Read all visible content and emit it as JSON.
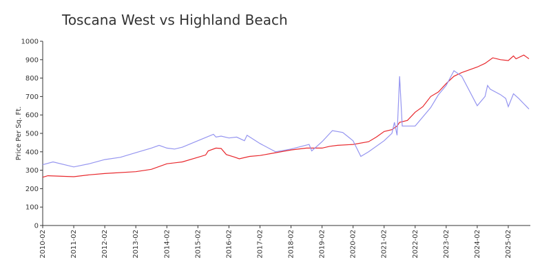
{
  "chart_data": {
    "type": "line",
    "title": "Toscana West vs Highland Beach",
    "y_label": "Price Per Sq. Ft.",
    "xlim": [
      "2010-02",
      "2025-10"
    ],
    "xticks": [
      "2010-02",
      "2011-02",
      "2012-02",
      "2013-02",
      "2014-02",
      "2015-02",
      "2016-02",
      "2017-02",
      "2018-02",
      "2019-02",
      "2020-02",
      "2021-02",
      "2022-02",
      "2023-02",
      "2024-02",
      "2025-02"
    ],
    "ylim": [
      0,
      1000
    ],
    "yticks": [
      0,
      100,
      200,
      300,
      400,
      500,
      600,
      700,
      800,
      900,
      1000
    ],
    "series": [
      {
        "color": "#e8262b",
        "x": [
          "2010-02",
          "2010-04",
          "2011-02",
          "2011-08",
          "2012-02",
          "2013-02",
          "2013-08",
          "2014-02",
          "2014-08",
          "2015-02",
          "2015-05",
          "2015-06",
          "2015-09",
          "2015-11",
          "2016-01",
          "2016-04",
          "2016-06",
          "2016-10",
          "2017-02",
          "2017-06",
          "2018-02",
          "2018-08",
          "2019-02",
          "2019-05",
          "2019-08",
          "2020-02",
          "2020-08",
          "2020-11",
          "2021-02",
          "2021-05",
          "2021-07",
          "2021-08",
          "2021-11",
          "2022-02",
          "2022-05",
          "2022-08",
          "2022-11",
          "2023-02",
          "2023-05",
          "2023-08",
          "2024-02",
          "2024-05",
          "2024-08",
          "2024-11",
          "2025-02",
          "2025-04",
          "2025-05",
          "2025-08",
          "2025-10"
        ],
        "values": [
          262,
          270,
          265,
          275,
          282,
          292,
          305,
          335,
          345,
          370,
          383,
          405,
          420,
          418,
          385,
          372,
          362,
          375,
          380,
          390,
          410,
          420,
          420,
          430,
          435,
          440,
          455,
          480,
          510,
          520,
          540,
          560,
          570,
          615,
          645,
          700,
          725,
          770,
          810,
          830,
          860,
          880,
          910,
          900,
          895,
          920,
          905,
          925,
          905
        ]
      },
      {
        "color": "#9494f0",
        "x": [
          "2010-02",
          "2010-06",
          "2011-02",
          "2011-08",
          "2012-02",
          "2012-08",
          "2013-02",
          "2013-08",
          "2013-11",
          "2014-02",
          "2014-05",
          "2014-08",
          "2015-02",
          "2015-08",
          "2015-09",
          "2015-11",
          "2016-02",
          "2016-05",
          "2016-08",
          "2016-09",
          "2017-02",
          "2017-08",
          "2018-02",
          "2018-09",
          "2018-10",
          "2019-02",
          "2019-06",
          "2019-10",
          "2020-02",
          "2020-05",
          "2020-08",
          "2021-02",
          "2021-05",
          "2021-06",
          "2021-07",
          "2021-08",
          "2021-09",
          "2022-02",
          "2022-08",
          "2022-11",
          "2023-02",
          "2023-05",
          "2023-08",
          "2024-02",
          "2024-05",
          "2024-06",
          "2024-07",
          "2024-11",
          "2025-01",
          "2025-02",
          "2025-04",
          "2025-06",
          "2025-10"
        ],
        "values": [
          330,
          345,
          318,
          335,
          358,
          370,
          395,
          420,
          435,
          420,
          415,
          425,
          460,
          495,
          480,
          485,
          475,
          480,
          460,
          490,
          445,
          400,
          415,
          440,
          405,
          455,
          515,
          505,
          460,
          375,
          400,
          460,
          500,
          560,
          490,
          810,
          540,
          540,
          640,
          710,
          760,
          840,
          810,
          650,
          700,
          760,
          740,
          710,
          690,
          645,
          715,
          690,
          632
        ]
      }
    ]
  }
}
